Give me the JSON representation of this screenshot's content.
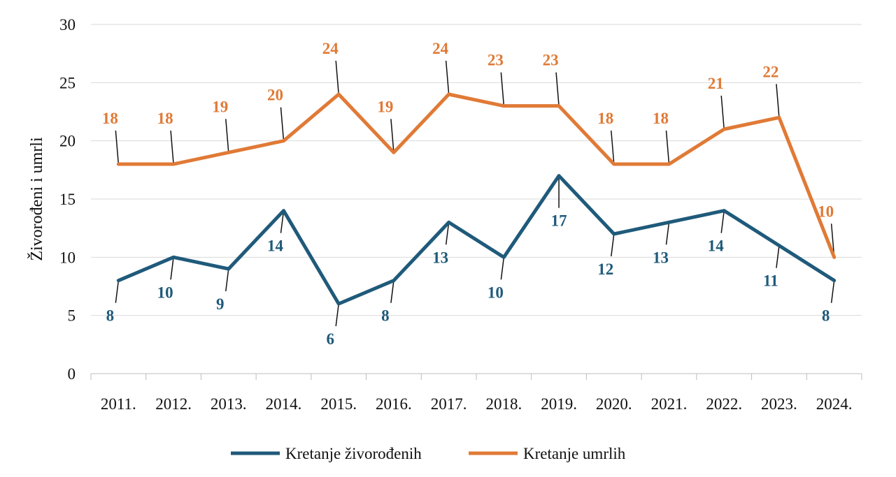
{
  "chart_data": {
    "type": "line",
    "title": "",
    "xlabel": "",
    "ylabel": "Živorođeni i umrli",
    "categories": [
      "2011.",
      "2012.",
      "2013.",
      "2014.",
      "2015.",
      "2016.",
      "2017.",
      "2018.",
      "2019.",
      "2020.",
      "2021.",
      "2022.",
      "2023.",
      "2024."
    ],
    "ylim": [
      0,
      30
    ],
    "yticks": [
      "0",
      "5",
      "10",
      "15",
      "20",
      "25",
      "30"
    ],
    "grid": true,
    "legend_position": "bottom",
    "series": [
      {
        "name": "Kretanje živorođenih",
        "color": "#1f5a7a",
        "values": [
          8,
          10,
          9,
          14,
          6,
          8,
          13,
          10,
          17,
          12,
          13,
          14,
          11,
          8
        ],
        "labels": [
          "8",
          "10",
          "9",
          "14",
          "6",
          "8",
          "13",
          "10",
          "17",
          "12",
          "13",
          "14",
          "11",
          "8"
        ]
      },
      {
        "name": "Kretanje umrlih",
        "color": "#e07a36",
        "values": [
          18,
          18,
          19,
          20,
          24,
          19,
          24,
          23,
          23,
          18,
          18,
          21,
          22,
          10
        ],
        "labels": [
          "18",
          "18",
          "19",
          "20",
          "24",
          "19",
          "24",
          "23",
          "23",
          "18",
          "18",
          "21",
          "22",
          "10"
        ]
      }
    ]
  }
}
